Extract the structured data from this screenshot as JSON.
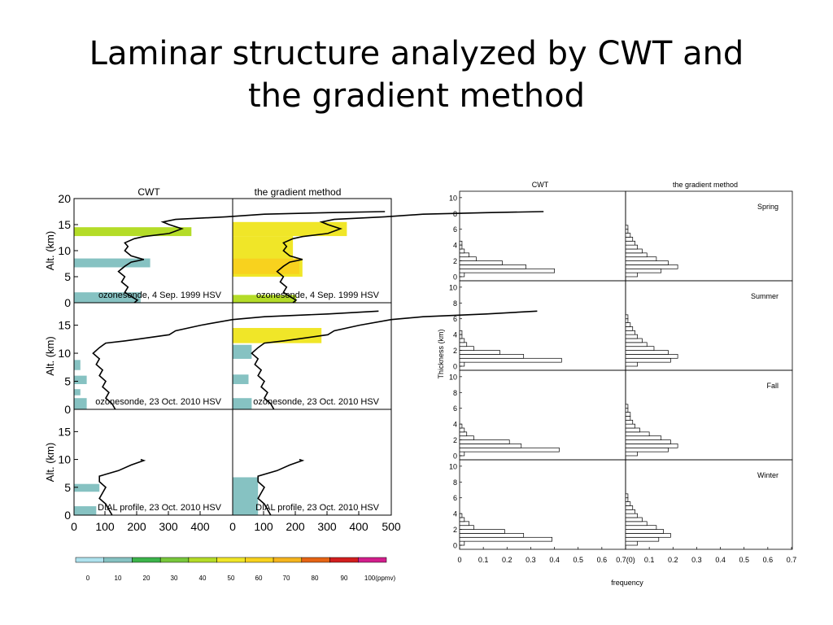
{
  "slide": {
    "title_line1": "Laminar structure analyzed by CWT and",
    "title_line2": "the gradient method"
  },
  "chart_data": [
    {
      "type": "area",
      "description_free": true,
      "columns": [
        "CWT",
        "the gradient method"
      ],
      "ylabel": "Alt. (km)",
      "xticks": [
        "0",
        "100",
        "200",
        "300",
        "400",
        "500"
      ],
      "panels": [
        {
          "label": "ozonesonde, 4 Sep. 1999 HSV",
          "yticks": [
            "0",
            "5",
            "10",
            "15",
            "20"
          ],
          "ylim": [
            0,
            20
          ],
          "xlim": [
            0,
            500
          ],
          "profile": [
            [
              95,
              0
            ],
            [
              100,
              0.5
            ],
            [
              90,
              1.2
            ],
            [
              80,
              2
            ],
            [
              85,
              3
            ],
            [
              75,
              4
            ],
            [
              80,
              5
            ],
            [
              70,
              6
            ],
            [
              80,
              7
            ],
            [
              90,
              7.8
            ],
            [
              110,
              8.3
            ],
            [
              90,
              9
            ],
            [
              80,
              10
            ],
            [
              85,
              10.8
            ],
            [
              80,
              11.5
            ],
            [
              95,
              12.3
            ],
            [
              110,
              12.7
            ],
            [
              150,
              13.3
            ],
            [
              170,
              14.2
            ],
            [
              150,
              15
            ],
            [
              140,
              15.5
            ],
            [
              160,
              16
            ],
            [
              240,
              16.5
            ],
            [
              300,
              17
            ],
            [
              400,
              17.3
            ],
            [
              490,
              17.5
            ]
          ],
          "cwt_layers": [
            {
              "y0": 0,
              "y1": 2,
              "x1": 105,
              "value": 15
            },
            {
              "y0": 6.8,
              "y1": 8.5,
              "x1": 120,
              "value": 15
            },
            {
              "y0": 12.8,
              "y1": 14.5,
              "x1": 185,
              "value": 40
            }
          ],
          "gradient_layers": [
            {
              "y0": 0,
              "y1": 1.5,
              "x1": 100,
              "value": 40
            },
            {
              "y0": 5,
              "y1": 8.5,
              "x1": 110,
              "value": 50
            },
            {
              "y0": 5.5,
              "y1": 8.5,
              "x1": 105,
              "value": 60
            },
            {
              "y0": 8.5,
              "y1": 12.8,
              "x1": 95,
              "value": 50
            },
            {
              "y0": 12.8,
              "y1": 15.5,
              "x1": 180,
              "value": 50
            }
          ]
        },
        {
          "label": "ozonesonde, 23 Oct. 2010 HSV",
          "yticks": [
            "0",
            "5",
            "10",
            "15"
          ],
          "ylim": [
            0,
            19
          ],
          "xlim": [
            0,
            500
          ],
          "profile": [
            [
              65,
              0
            ],
            [
              60,
              1
            ],
            [
              50,
              2
            ],
            [
              55,
              3
            ],
            [
              45,
              4
            ],
            [
              50,
              5
            ],
            [
              40,
              6
            ],
            [
              45,
              7
            ],
            [
              35,
              8
            ],
            [
              40,
              9
            ],
            [
              30,
              10
            ],
            [
              40,
              11
            ],
            [
              50,
              11.8
            ],
            [
              80,
              12.2
            ],
            [
              100,
              12.5
            ],
            [
              150,
              13.3
            ],
            [
              160,
              14
            ],
            [
              200,
              15
            ],
            [
              250,
              16
            ],
            [
              300,
              16.5
            ],
            [
              400,
              17
            ],
            [
              480,
              17.5
            ]
          ],
          "cwt_layers": [
            {
              "y0": 0,
              "y1": 2,
              "x1": 20,
              "value": 10
            },
            {
              "y0": 2.5,
              "y1": 3.6,
              "x1": 10,
              "value": 10
            },
            {
              "y0": 4.5,
              "y1": 6,
              "x1": 20,
              "value": 10
            },
            {
              "y0": 7,
              "y1": 8.8,
              "x1": 10,
              "value": 10
            }
          ],
          "gradient_layers": [
            {
              "y0": 0,
              "y1": 2,
              "x1": 30,
              "value": 10
            },
            {
              "y0": 4.5,
              "y1": 6.2,
              "x1": 25,
              "value": 10
            },
            {
              "y0": 9,
              "y1": 11.5,
              "x1": 30,
              "value": 15
            },
            {
              "y0": 11.8,
              "y1": 14.5,
              "x1": 140,
              "value": 50
            }
          ]
        },
        {
          "label": "DIAL profile, 23 Oct. 2010 HSV",
          "yticks": [
            "0",
            "5",
            "10",
            "15"
          ],
          "ylim": [
            0,
            19
          ],
          "xlim": [
            0,
            500
          ],
          "profile": [
            [
              60,
              0
            ],
            [
              55,
              1
            ],
            [
              50,
              2
            ],
            [
              40,
              3
            ],
            [
              45,
              4
            ],
            [
              50,
              5
            ],
            [
              40,
              6
            ],
            [
              40,
              7
            ],
            [
              70,
              8
            ],
            [
              90,
              9
            ],
            [
              110,
              9.8
            ],
            [
              105,
              10
            ]
          ],
          "cwt_layers": [
            {
              "y0": 0,
              "y1": 1.6,
              "x1": 35,
              "value": 15
            },
            {
              "y0": 4.2,
              "y1": 5.6,
              "x1": 40,
              "value": 15
            }
          ],
          "gradient_layers": [
            {
              "y0": 0,
              "y1": 6.8,
              "x1": 40,
              "value": 15
            }
          ]
        }
      ],
      "colorbar": {
        "ticks": [
          "0",
          "10",
          "20",
          "30",
          "40",
          "50",
          "60",
          "70",
          "80",
          "90",
          "100(ppmv)"
        ],
        "colors": [
          "#aee2ee",
          "#86c2c2",
          "#3cb44b",
          "#78c83c",
          "#b4dc28",
          "#f0e628",
          "#f8d21e",
          "#f5b41e",
          "#e66414",
          "#d21e1e",
          "#d21e8c"
        ]
      }
    },
    {
      "type": "bar",
      "columns": [
        "CWT",
        "the gradient method"
      ],
      "ylabel": "Thickness (km)",
      "xlabel": "frequency",
      "yticks": [
        "0",
        "2",
        "4",
        "6",
        "8",
        "10"
      ],
      "xticks_left": [
        "0",
        "0.1",
        "0.2",
        "0.3",
        "0.4",
        "0.5",
        "0.6",
        "0.7(0)"
      ],
      "xticks_right": [
        "0.1",
        "0.2",
        "0.3",
        "0.4",
        "0.5",
        "0.6",
        "0.7"
      ],
      "ylim": [
        0,
        10.5
      ],
      "xlim": [
        0,
        0.7
      ],
      "bin_centers": [
        0.25,
        0.75,
        1.25,
        1.75,
        2.25,
        2.75,
        3.25,
        3.75,
        4.25,
        4.75,
        5.25,
        5.75,
        6.25
      ],
      "seasons": [
        {
          "name": "Spring",
          "cwt": [
            0.02,
            0.4,
            0.28,
            0.18,
            0.07,
            0.04,
            0.02,
            0.01,
            0.01,
            0,
            0,
            0,
            0
          ],
          "gradient": [
            0.05,
            0.15,
            0.22,
            0.18,
            0.13,
            0.09,
            0.07,
            0.05,
            0.04,
            0.03,
            0.02,
            0.01,
            0.01
          ]
        },
        {
          "name": "Summer",
          "cwt": [
            0.02,
            0.43,
            0.27,
            0.17,
            0.06,
            0.03,
            0.02,
            0.01,
            0.01,
            0,
            0,
            0,
            0
          ],
          "gradient": [
            0.05,
            0.19,
            0.22,
            0.18,
            0.12,
            0.09,
            0.07,
            0.05,
            0.04,
            0.03,
            0.02,
            0.01,
            0.01
          ]
        },
        {
          "name": "Fall",
          "cwt": [
            0.02,
            0.42,
            0.26,
            0.21,
            0.06,
            0.03,
            0.02,
            0.01,
            0,
            0,
            0,
            0,
            0
          ],
          "gradient": [
            0.05,
            0.18,
            0.22,
            0.19,
            0.15,
            0.1,
            0.06,
            0.04,
            0.03,
            0.02,
            0.02,
            0.01,
            0.01
          ]
        },
        {
          "name": "Winter",
          "cwt": [
            0.02,
            0.39,
            0.27,
            0.19,
            0.06,
            0.04,
            0.02,
            0.01,
            0,
            0,
            0,
            0,
            0
          ],
          "gradient": [
            0.05,
            0.14,
            0.19,
            0.16,
            0.13,
            0.09,
            0.07,
            0.05,
            0.04,
            0.03,
            0.02,
            0.01,
            0.01
          ]
        }
      ]
    }
  ]
}
